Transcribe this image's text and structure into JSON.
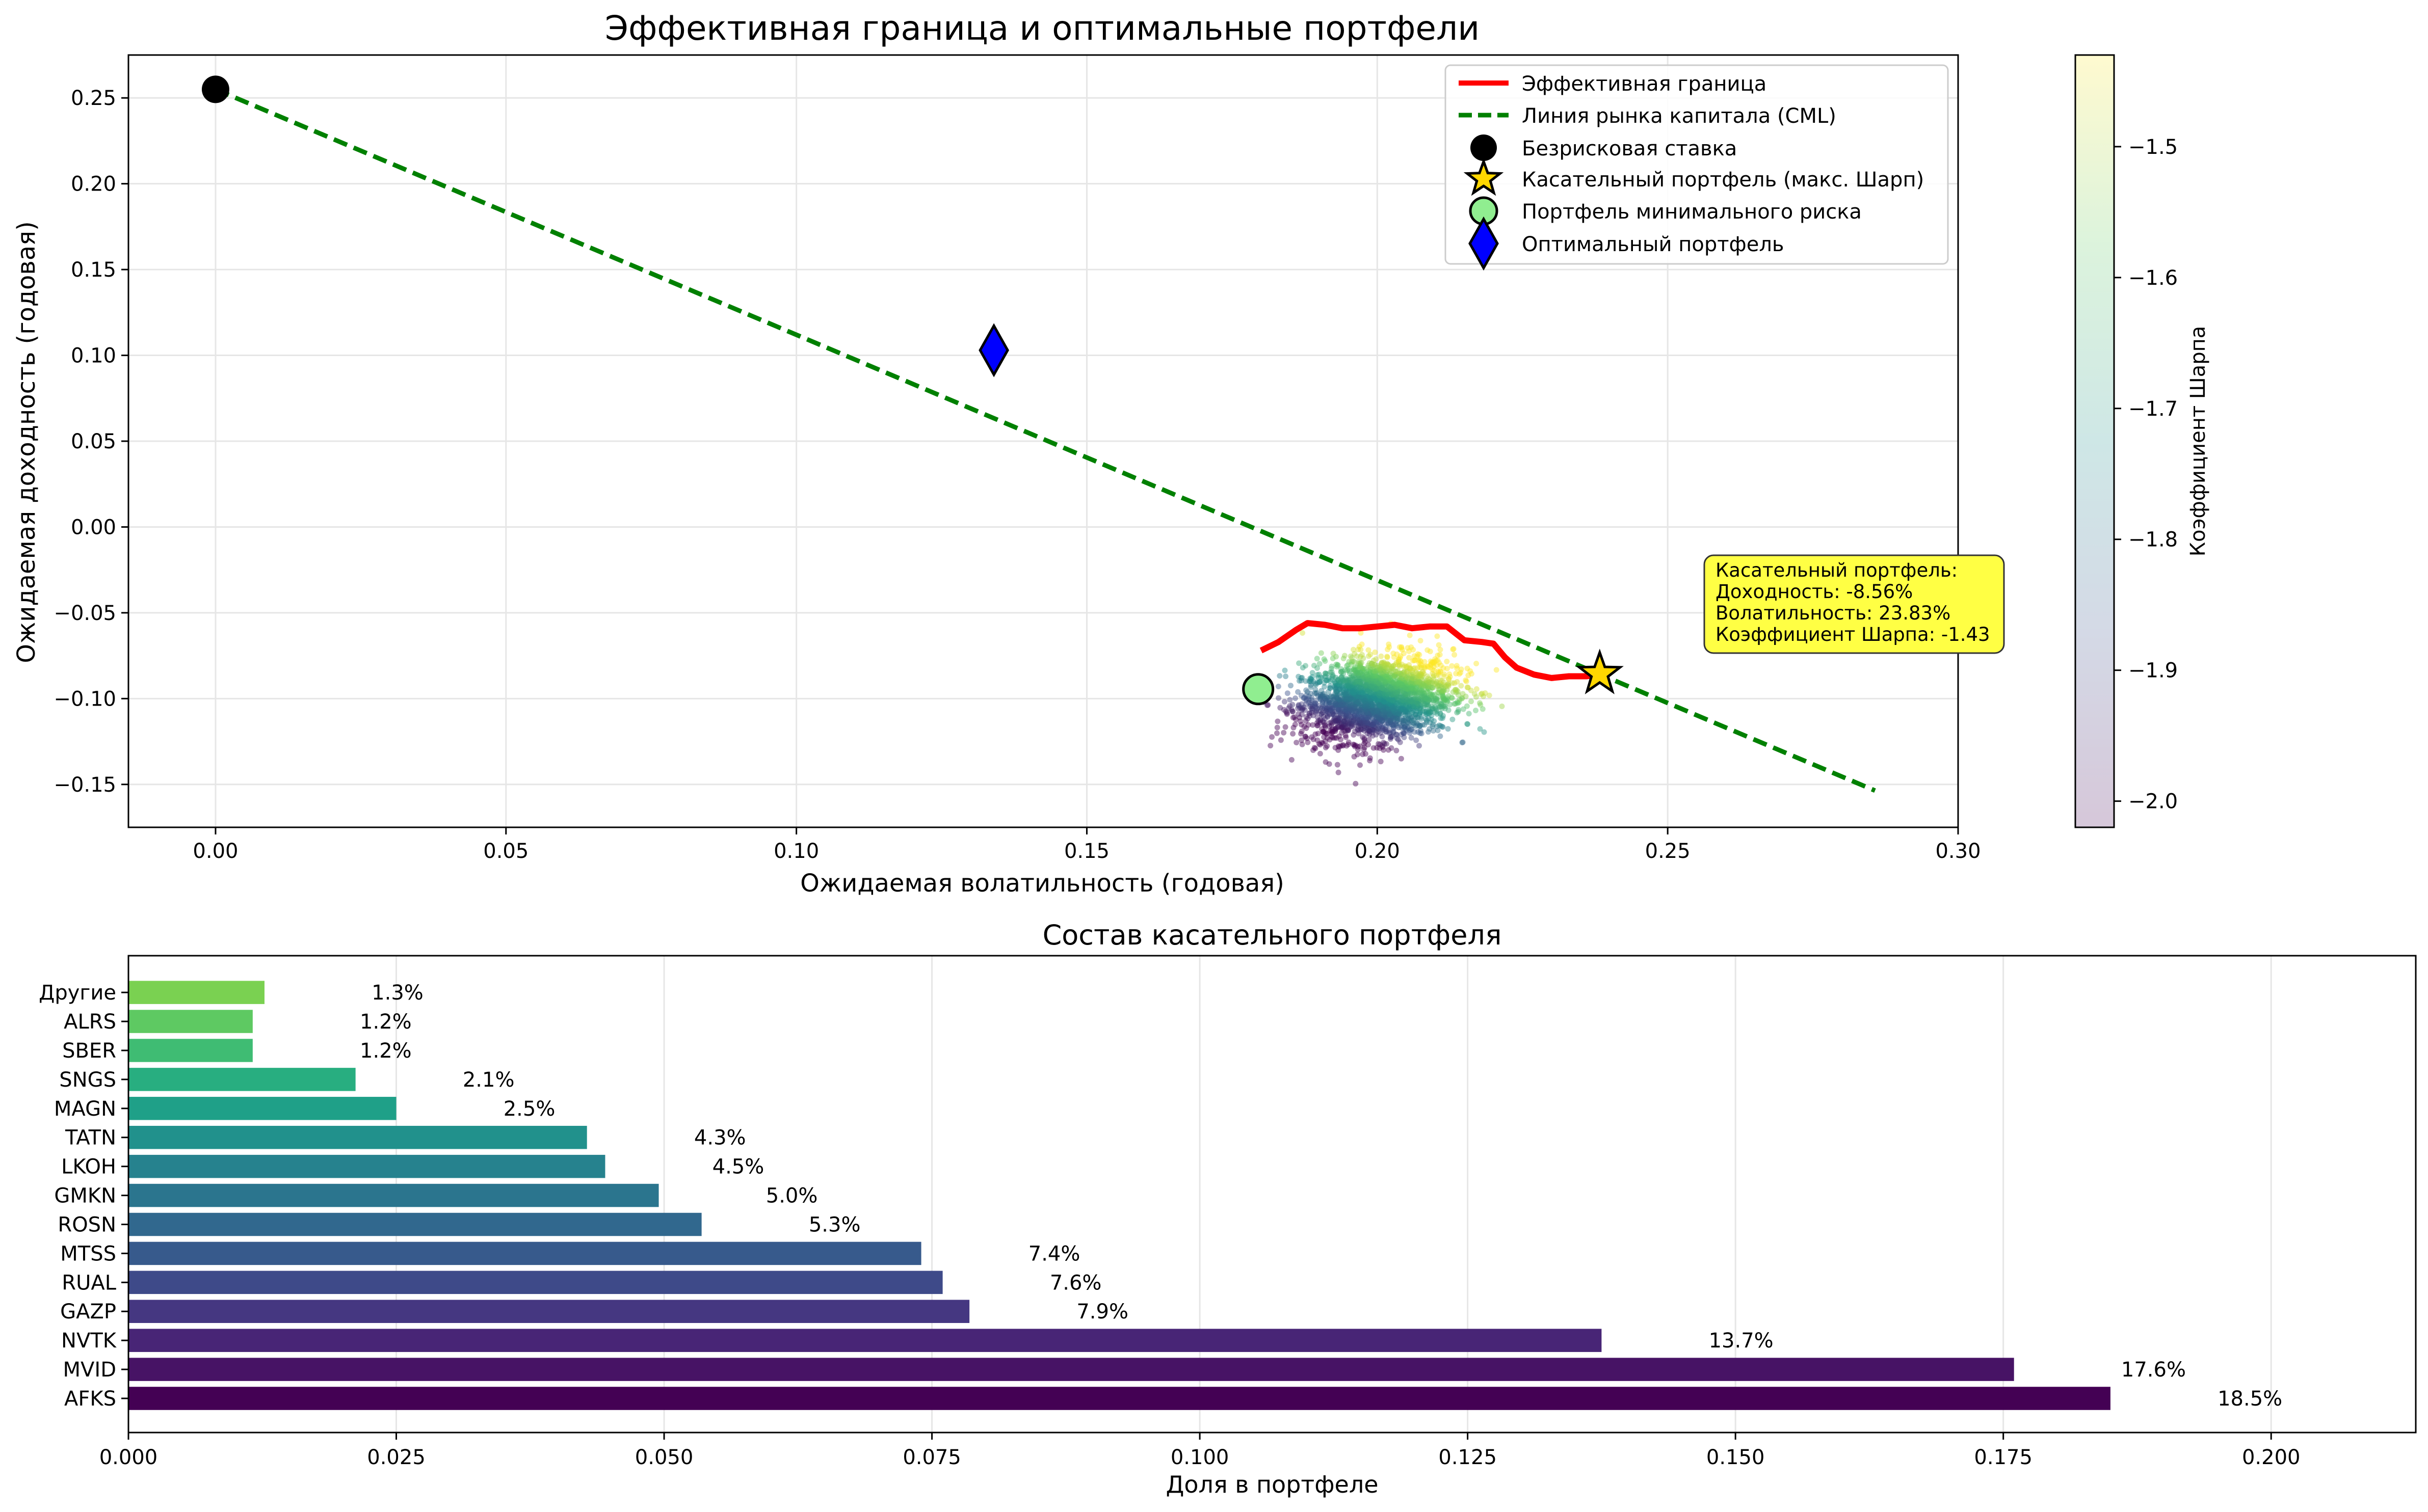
{
  "chart_data": [
    {
      "type": "scatter",
      "title": "Эффективная граница и оптимальные портфели",
      "xlabel": "Ожидаемая волатильность (годовая)",
      "ylabel": "Ожидаемая доходность (годовая)",
      "xlim": [
        -0.015,
        0.3
      ],
      "ylim": [
        -0.175,
        0.275
      ],
      "xticks": [
        "0.00",
        "0.05",
        "0.10",
        "0.15",
        "0.20",
        "0.25",
        "0.30"
      ],
      "yticks": [
        "−0.15",
        "−0.10",
        "−0.05",
        "0.00",
        "0.05",
        "0.10",
        "0.15",
        "0.20",
        "0.25"
      ],
      "grid": true,
      "legend_position": "top-right",
      "legend": {
        "frontier": "Эффективная граница",
        "cml": "Линия рынка капитала (CML)",
        "risk_free": "Безрисковая ставка",
        "tangent": "Касательный портфель (макс. Шарп)",
        "min_risk": "Портфель минимального риска",
        "optimal": "Оптимальный портфель"
      },
      "series": [
        {
          "name": "Эффективная граница",
          "kind": "line",
          "color": "#ff0000",
          "points": [
            [
              0.18,
              -0.072
            ],
            [
              0.183,
              -0.067
            ],
            [
              0.186,
              -0.06
            ],
            [
              0.188,
              -0.056
            ],
            [
              0.191,
              -0.057
            ],
            [
              0.194,
              -0.059
            ],
            [
              0.197,
              -0.059
            ],
            [
              0.2,
              -0.058
            ],
            [
              0.203,
              -0.057
            ],
            [
              0.206,
              -0.059
            ],
            [
              0.209,
              -0.058
            ],
            [
              0.212,
              -0.058
            ],
            [
              0.215,
              -0.066
            ],
            [
              0.218,
              -0.067
            ],
            [
              0.22,
              -0.068
            ],
            [
              0.222,
              -0.076
            ],
            [
              0.224,
              -0.082
            ],
            [
              0.227,
              -0.086
            ],
            [
              0.23,
              -0.088
            ],
            [
              0.233,
              -0.087
            ],
            [
              0.236,
              -0.087
            ],
            [
              0.238,
              -0.086
            ]
          ]
        },
        {
          "name": "Линия рынка капитала (CML)",
          "kind": "line",
          "dash": true,
          "color": "#008000",
          "points": [
            [
              0.0,
              0.255
            ],
            [
              0.2857,
              -0.1536
            ]
          ]
        },
        {
          "name": "Безрисковая ставка",
          "kind": "marker",
          "marker": "circle",
          "color": "#000000",
          "x": 0.0,
          "y": 0.255
        },
        {
          "name": "Касательный портфель (макс. Шарп)",
          "kind": "marker",
          "marker": "star",
          "color": "#ffd700",
          "x": 0.2383,
          "y": -0.0856
        },
        {
          "name": "Портфель минимального риска",
          "kind": "marker",
          "marker": "circle",
          "color": "#90ee90",
          "x": 0.1795,
          "y": -0.0945
        },
        {
          "name": "Оптимальный портфель",
          "kind": "marker",
          "marker": "diamond",
          "color": "#0000ff",
          "x": 0.134,
          "y": 0.103
        },
        {
          "name": "",
          "kind": "scatter_cloud",
          "colormap": "viridis",
          "center": [
            0.2,
            -0.1
          ],
          "spread": [
            0.0065,
            0.012
          ],
          "count": 2600,
          "x_range": [
            0.18,
            0.228
          ],
          "y_range": [
            -0.152,
            -0.048
          ]
        }
      ],
      "annotation": {
        "lines": [
          "Касательный портфель:",
          "Доходность: -8.56%",
          "Волатильность: 23.83%",
          "Коэффициент Шарпа: -1.43"
        ],
        "background": "#ffff44"
      },
      "colorbar": {
        "label": "Коэффициент Шарпа",
        "range": [
          -2.02,
          -1.43
        ],
        "ticks": [
          "−1.5",
          "−1.6",
          "−1.7",
          "−1.8",
          "−1.9",
          "−2.0"
        ],
        "tick_values": [
          -1.5,
          -1.6,
          -1.7,
          -1.8,
          -1.9,
          -2.0
        ]
      }
    },
    {
      "type": "bar",
      "orientation": "horizontal",
      "title": "Состав касательного портфеля",
      "xlabel": "Доля в портфеле",
      "xlim": [
        0.0,
        0.2135
      ],
      "xticks": [
        "0.000",
        "0.025",
        "0.050",
        "0.075",
        "0.100",
        "0.125",
        "0.150",
        "0.175",
        "0.200"
      ],
      "grid": true,
      "categories": [
        "AFKS",
        "MVID",
        "NVTK",
        "GAZP",
        "RUAL",
        "MTSS",
        "ROSN",
        "GMKN",
        "LKOH",
        "TATN",
        "MAGN",
        "SNGS",
        "SBER",
        "ALRS",
        "Другие"
      ],
      "values": [
        0.185,
        0.176,
        0.1375,
        0.0785,
        0.076,
        0.074,
        0.0535,
        0.0495,
        0.0445,
        0.0428,
        0.025,
        0.0212,
        0.0116,
        0.0116,
        0.0127
      ],
      "labels": [
        "18.5%",
        "17.6%",
        "13.7%",
        "7.9%",
        "7.6%",
        "7.4%",
        "5.3%",
        "5.0%",
        "4.5%",
        "4.3%",
        "2.5%",
        "2.1%",
        "1.2%",
        "1.2%",
        "1.3%"
      ],
      "colors": [
        "#440154",
        "#471365",
        "#482576",
        "#453781",
        "#3e4a89",
        "#375a8c",
        "#31688e",
        "#2b758e",
        "#26828e",
        "#21918c",
        "#1fa088",
        "#28ae80",
        "#3fbc73",
        "#5ec962",
        "#7ad151"
      ]
    }
  ]
}
